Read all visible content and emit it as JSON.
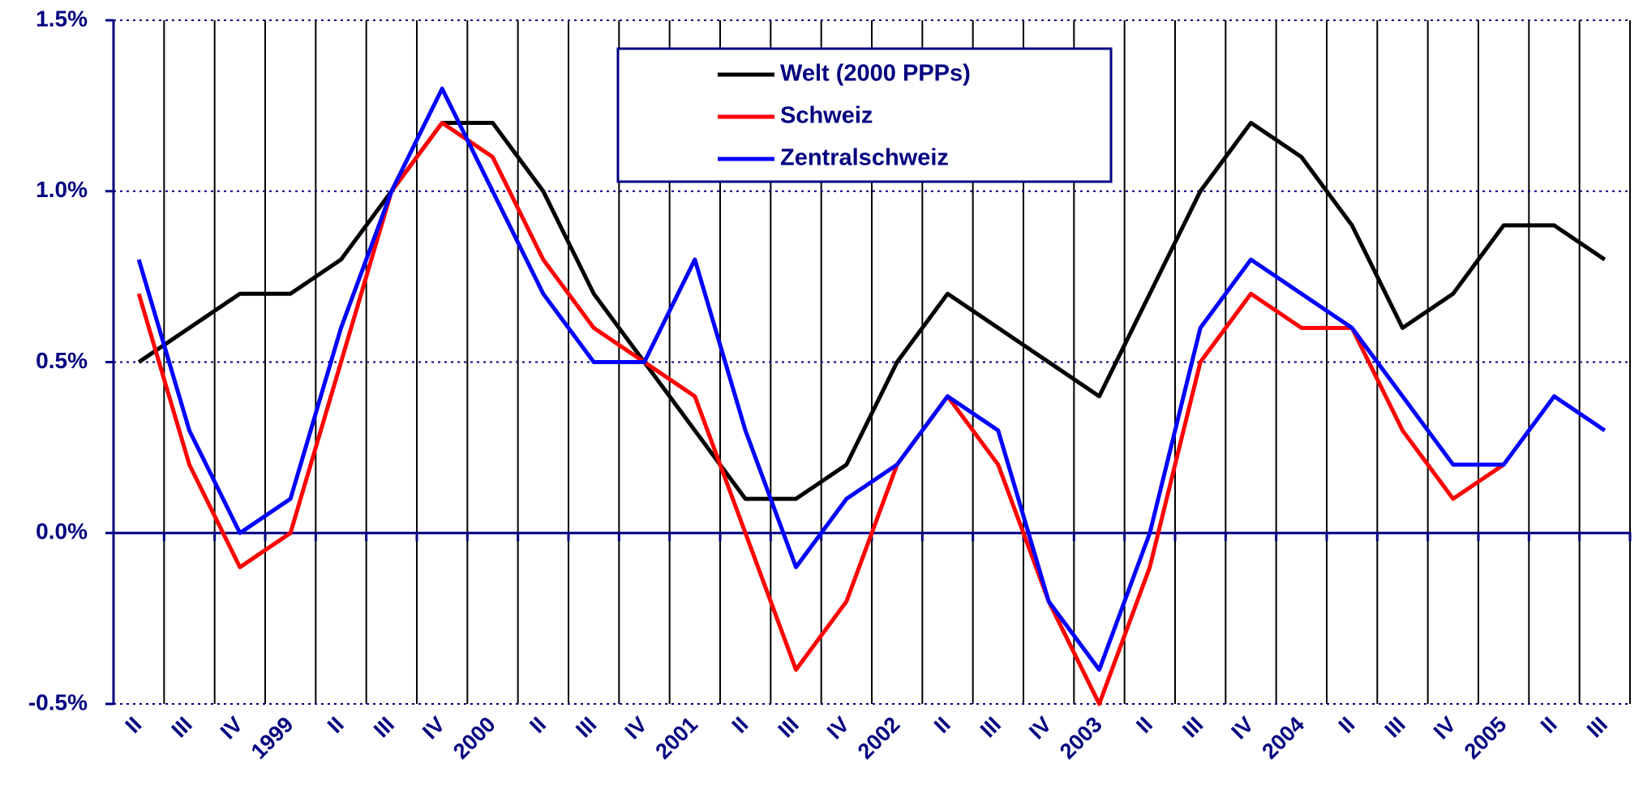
{
  "chart_data": {
    "type": "line",
    "categories": [
      "II",
      "III",
      "IV",
      "1999",
      "II",
      "III",
      "IV",
      "2000",
      "II",
      "III",
      "IV",
      "2001",
      "II",
      "III",
      "IV",
      "2002",
      "II",
      "III",
      "IV",
      "2003",
      "II",
      "III",
      "IV",
      "2004",
      "II",
      "III",
      "IV",
      "2005",
      "II",
      "III"
    ],
    "series": [
      {
        "name": "Welt (2000 PPPs)",
        "color": "#000000",
        "values": [
          0.5,
          0.6,
          0.7,
          0.7,
          0.8,
          1.0,
          1.2,
          1.2,
          1.0,
          0.7,
          0.5,
          0.3,
          0.1,
          0.1,
          0.2,
          0.5,
          0.7,
          0.6,
          0.5,
          0.4,
          0.7,
          1.0,
          1.2,
          1.1,
          0.9,
          0.6,
          0.7,
          0.9,
          0.9,
          0.8
        ]
      },
      {
        "name": "Schweiz",
        "color": "#ff0000",
        "values": [
          0.7,
          0.2,
          -0.1,
          0.0,
          0.5,
          1.0,
          1.2,
          1.1,
          0.8,
          0.6,
          0.5,
          0.4,
          0.0,
          -0.4,
          -0.2,
          0.2,
          0.4,
          0.2,
          -0.2,
          -0.5,
          -0.1,
          0.5,
          0.7,
          0.6,
          0.6,
          0.3,
          0.1,
          0.2,
          null,
          null
        ]
      },
      {
        "name": "Zentralschweiz",
        "color": "#0000ff",
        "values": [
          0.8,
          0.3,
          0.0,
          0.1,
          0.6,
          1.0,
          1.3,
          1.0,
          0.7,
          0.5,
          0.5,
          0.8,
          0.3,
          -0.1,
          0.1,
          0.2,
          0.4,
          0.3,
          -0.2,
          -0.4,
          0.0,
          0.6,
          0.8,
          0.7,
          0.6,
          0.4,
          0.2,
          0.2,
          0.4,
          0.3
        ]
      }
    ],
    "ylim": [
      -0.5,
      1.5
    ],
    "yticks": [
      {
        "value": -0.5,
        "label": "-0.5%"
      },
      {
        "value": 0,
        "label": "0.0%"
      },
      {
        "value": 0.5,
        "label": "0.5%"
      },
      {
        "value": 1.0,
        "label": "1.0%"
      },
      {
        "value": 1.5,
        "label": "1.5%"
      }
    ],
    "grid": true
  }
}
